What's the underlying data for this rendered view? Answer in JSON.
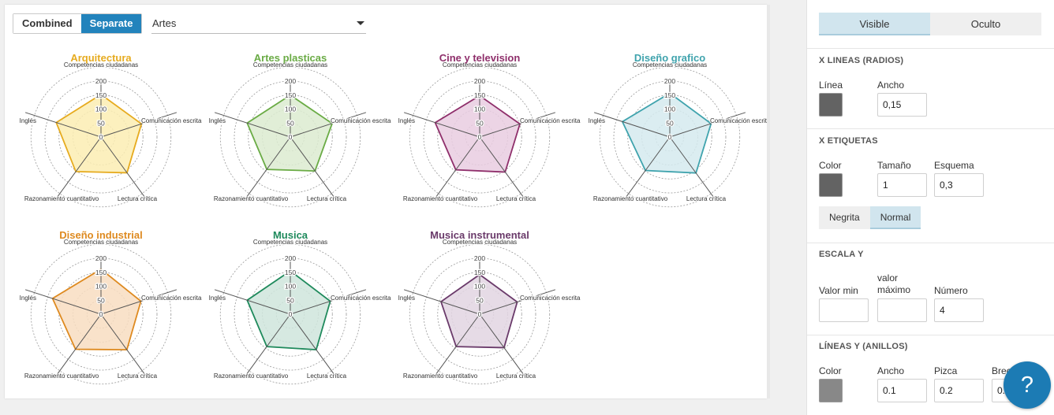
{
  "toolbar": {
    "combined_label": "Combined",
    "separate_label": "Separate",
    "dataset_value": "Artes"
  },
  "chart_data": {
    "type": "radar",
    "axes": [
      "Competencias ciudadanas",
      "Comunicación escrita",
      "Lectura crítica",
      "Razonamiento cuantitativo",
      "Inglés"
    ],
    "ticks": [
      0,
      50,
      100,
      150,
      200
    ],
    "rlim": [
      0,
      200
    ],
    "grid": true,
    "series": [
      {
        "name": "Arquitectura",
        "color": "#e6ab1f",
        "fill": "#fbedb3",
        "values": [
          152,
          152,
          158,
          153,
          168
        ]
      },
      {
        "name": "Artes plasticas",
        "color": "#6aab45",
        "fill": "#dcebd0",
        "values": [
          150,
          157,
          150,
          143,
          162
        ]
      },
      {
        "name": "Cine y television",
        "color": "#8f2f6b",
        "fill": "#e9cde0",
        "values": [
          148,
          151,
          155,
          145,
          167
        ]
      },
      {
        "name": "Diseño grafico",
        "color": "#3fa3ad",
        "fill": "#d5eaee",
        "values": [
          157,
          155,
          159,
          148,
          178
        ]
      },
      {
        "name": "Diseño industrial",
        "color": "#de8a20",
        "fill": "#f8ddc1",
        "values": [
          161,
          150,
          157,
          155,
          182
        ]
      },
      {
        "name": "Musica",
        "color": "#1f8a5c",
        "fill": "#cfe5dc",
        "values": [
          155,
          150,
          157,
          143,
          162
        ]
      },
      {
        "name": "Musica instrumental",
        "color": "#6a3a6a",
        "fill": "#e2d5e2",
        "values": [
          142,
          141,
          148,
          143,
          145
        ]
      }
    ]
  },
  "panel": {
    "visible_label": "Visible",
    "hidden_label": "Oculto",
    "x_lines": {
      "title": "X LINEAS (RADIOS)",
      "line_label": "Línea",
      "width_label": "Ancho",
      "width_value": "0,15",
      "line_color": "#636363"
    },
    "x_labels": {
      "title": "X ETIQUETAS",
      "color_label": "Color",
      "size_label": "Tamaño",
      "size_value": "1",
      "outline_label": "Esquema",
      "outline_value": "0,3",
      "label_color": "#636363",
      "bold_label": "Negrita",
      "normal_label": "Normal"
    },
    "y_scale": {
      "title": "ESCALA Y",
      "min_label": "Valor min",
      "max_label": "valor máximo",
      "count_label": "Número",
      "min_value": "",
      "max_value": "",
      "count_value": "4"
    },
    "y_lines": {
      "title": "LÍNEAS Y (ANILLOS)",
      "color_label": "Color",
      "width_label": "Ancho",
      "width_value": "0.1",
      "dash_label": "Pizca",
      "dash_value": "0.2",
      "gap_label": "Brecha",
      "gap_value": "0.1",
      "ring_color": "#888888"
    }
  },
  "help_label": "?"
}
